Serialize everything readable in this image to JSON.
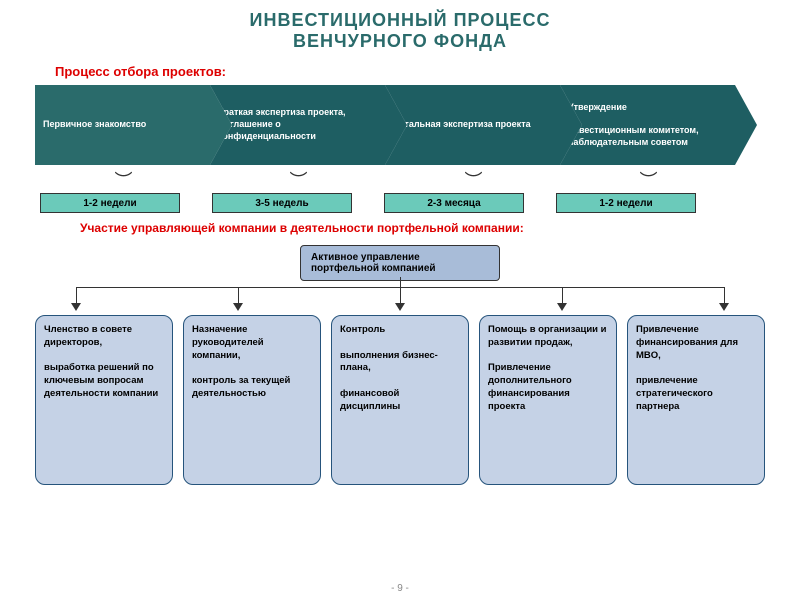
{
  "title_line1": "ИНВЕСТИЦИОННЫЙ ПРОЦЕСС",
  "title_line2": "ВЕНЧУРНОГО ФОНДА",
  "subtitle1": "Процесс отбора проектов:",
  "subtitle2": "Участие управляющей компании в деятельности портфельной компании:",
  "arrows": [
    {
      "text": "Первичное знакомство",
      "bg": "#2a6b6b"
    },
    {
      "text": "Краткая экспертиза проекта, Соглашение о конфиденциальности",
      "bg": "#1e5e62"
    },
    {
      "text": "Детальная экспертиза  проекта",
      "bg": "#1e5e62"
    },
    {
      "text": "Утверждение\n\nинвестиционным  комитетом, наблюдательным советом",
      "bg": "#1e5e62"
    }
  ],
  "durations": [
    {
      "label": "1-2 недели",
      "bg": "#6bcaba"
    },
    {
      "label": "3-5 недель",
      "bg": "#6bcaba"
    },
    {
      "label": "2-3 месяца",
      "bg": "#6bcaba"
    },
    {
      "label": "1-2 недели",
      "bg": "#6bcaba"
    }
  ],
  "center_box": {
    "text": "Активное управление портфельной компанией",
    "bg": "#a8bcd8"
  },
  "boxes": [
    {
      "text": "Членство в совете директоров,\n\nвыработка решений по ключевым вопросам деятельности компании",
      "bg": "#c5d2e6"
    },
    {
      "text": "Назначение руководителей компании,\n\nконтроль за текущей деятельностью",
      "bg": "#c5d2e6"
    },
    {
      "text": "Контроль\n\nвыполнения бизнес-плана,\n\nфинансовой дисциплины",
      "bg": "#c5d2e6"
    },
    {
      "text": "Помощь в организации и развитии продаж,\n\nПривлечение дополнительного финансирования проекта",
      "bg": "#c5d2e6"
    },
    {
      "text": "Привлечение финансирования для MBO,\n\nпривлечение стратегического партнера",
      "bg": "#c5d2e6"
    }
  ],
  "connector_positions_pct": [
    5,
    27.5,
    50,
    72.5,
    95
  ],
  "page_number": "- 9 -"
}
